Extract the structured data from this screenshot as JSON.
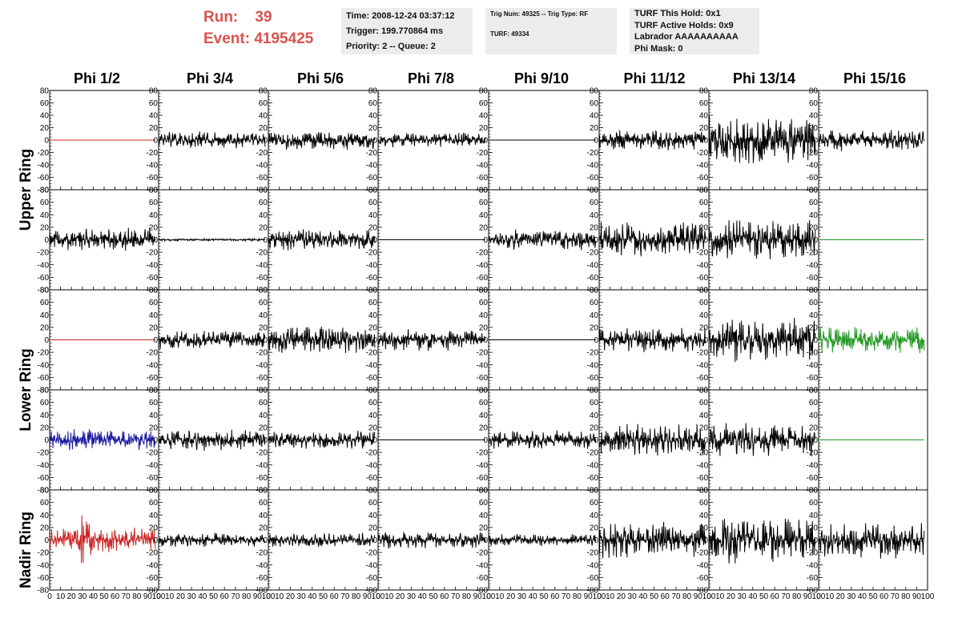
{
  "header": {
    "run_label": "Run:",
    "run_value": "39",
    "event_label": "Event:",
    "event_value": "4195425",
    "time": "Time: 2008-12-24 03:37:12",
    "trigger": "Trigger: 199.770864 ms",
    "priority": "Priority: 2 -- Queue: 2",
    "trig_num": "Trig Num: 49325 -- Trig Type: RF",
    "turf": "TURF: 49334",
    "turf_hold": "TURF This Hold: 0x1",
    "turf_active": "TURF Active Holds: 0x9",
    "labrador": "Labrador AAAAAAAAAA",
    "phi_mask": "Phi Mask: 0"
  },
  "chart_data": {
    "type": "line",
    "columns": [
      "Phi 1/2",
      "Phi 3/4",
      "Phi 5/6",
      "Phi 7/8",
      "Phi 9/10",
      "Phi 11/12",
      "Phi 13/14",
      "Phi 15/16"
    ],
    "ring_labels": [
      "Upper Ring",
      "Lower Ring",
      "Nadir Ring"
    ],
    "xlim": [
      0,
      100
    ],
    "x_ticks": [
      0,
      10,
      20,
      30,
      40,
      50,
      60,
      70,
      80,
      90,
      100
    ],
    "x_tick_labels": [
      "0",
      "10",
      "20",
      "30",
      "40",
      "50",
      "60",
      "70",
      "80",
      "90",
      "100"
    ],
    "ylim": [
      -80,
      80
    ],
    "y_ticks": [
      -80,
      -60,
      -40,
      -20,
      0,
      20,
      40,
      60,
      80
    ],
    "y_tick_labels": [
      "-80",
      "-60",
      "-40",
      "-20",
      "0",
      "20",
      "40",
      "60",
      "80"
    ],
    "samples_per_trace": 260,
    "x_end": 97,
    "colors": {
      "black": "#000000",
      "red": "#cc2222",
      "blue": "#1a1aa0",
      "green": "#229922"
    },
    "panels": [
      [
        {
          "color": "red",
          "flat": true,
          "amp": 0
        },
        {
          "color": "black",
          "flat": false,
          "amp": 14
        },
        {
          "color": "black",
          "flat": false,
          "amp": 16
        },
        {
          "color": "black",
          "flat": false,
          "amp": 12
        },
        {
          "color": "black",
          "flat": true,
          "amp": 0
        },
        {
          "color": "black",
          "flat": false,
          "amp": 17
        },
        {
          "color": "black",
          "flat": false,
          "amp": 40
        },
        {
          "color": "black",
          "flat": false,
          "amp": 18
        }
      ],
      [
        {
          "color": "black",
          "flat": false,
          "amp": 20
        },
        {
          "color": "black",
          "flat": false,
          "amp": 2
        },
        {
          "color": "black",
          "flat": false,
          "amp": 18
        },
        {
          "color": "black",
          "flat": true,
          "amp": 0
        },
        {
          "color": "black",
          "flat": false,
          "amp": 18
        },
        {
          "color": "black",
          "flat": false,
          "amp": 32
        },
        {
          "color": "black",
          "flat": false,
          "amp": 34
        },
        {
          "color": "green",
          "flat": true,
          "amp": 0
        }
      ],
      [
        {
          "color": "red",
          "flat": true,
          "amp": 0
        },
        {
          "color": "black",
          "flat": false,
          "amp": 15
        },
        {
          "color": "black",
          "flat": false,
          "amp": 22
        },
        {
          "color": "black",
          "flat": false,
          "amp": 18
        },
        {
          "color": "black",
          "flat": true,
          "amp": 0
        },
        {
          "color": "black",
          "flat": false,
          "amp": 20
        },
        {
          "color": "black",
          "flat": false,
          "amp": 38
        },
        {
          "color": "green",
          "flat": false,
          "amp": 22
        }
      ],
      [
        {
          "color": "blue",
          "flat": false,
          "amp": 18
        },
        {
          "color": "black",
          "flat": false,
          "amp": 18
        },
        {
          "color": "black",
          "flat": false,
          "amp": 16
        },
        {
          "color": "black",
          "flat": true,
          "amp": 0
        },
        {
          "color": "black",
          "flat": false,
          "amp": 16
        },
        {
          "color": "black",
          "flat": false,
          "amp": 26
        },
        {
          "color": "black",
          "flat": false,
          "amp": 28
        },
        {
          "color": "green",
          "flat": true,
          "amp": 0
        }
      ],
      [
        {
          "color": "red",
          "flat": false,
          "amp": 20,
          "burst": true
        },
        {
          "color": "black",
          "flat": false,
          "amp": 12
        },
        {
          "color": "black",
          "flat": false,
          "amp": 12
        },
        {
          "color": "black",
          "flat": false,
          "amp": 14
        },
        {
          "color": "black",
          "flat": false,
          "amp": 10
        },
        {
          "color": "black",
          "flat": false,
          "amp": 30
        },
        {
          "color": "black",
          "flat": false,
          "amp": 38
        },
        {
          "color": "black",
          "flat": false,
          "amp": 30
        }
      ]
    ]
  }
}
